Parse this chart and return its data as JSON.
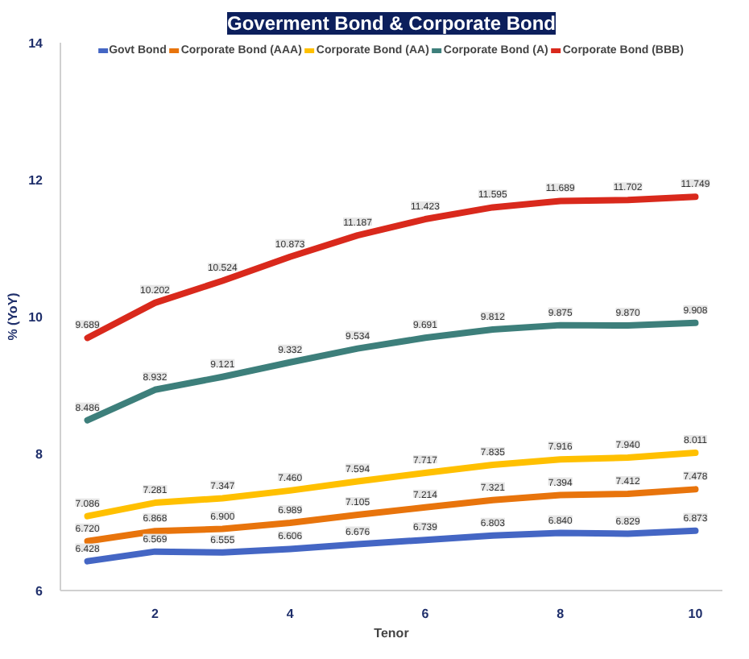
{
  "chart_data": {
    "type": "line",
    "title": "Goverment Bond & Corporate Bond",
    "xlabel": "Tenor",
    "ylabel": "% (YoY)",
    "x": [
      1,
      2,
      3,
      4,
      5,
      6,
      7,
      8,
      9,
      10
    ],
    "series": [
      {
        "name": "Govt Bond",
        "color": "#4466c4",
        "values": [
          6.428,
          6.569,
          6.555,
          6.606,
          6.676,
          6.739,
          6.803,
          6.84,
          6.829,
          6.873
        ],
        "value_labels": [
          "6.428",
          "6.569",
          "6.555",
          "6.606",
          "6.676",
          "6.739",
          "6.803",
          "6.840",
          "6.829",
          "6.873"
        ]
      },
      {
        "name": "Corporate Bond (AAA)",
        "color": "#e8740c",
        "values": [
          6.72,
          6.868,
          6.9,
          6.989,
          7.105,
          7.214,
          7.321,
          7.394,
          7.412,
          7.478
        ],
        "value_labels": [
          "6.720",
          "6.868",
          "6.900",
          "6.989",
          "7.105",
          "7.214",
          "7.321",
          "7.394",
          "7.412",
          "7.478"
        ]
      },
      {
        "name": "Corporate Bond (AA)",
        "color": "#ffc000",
        "values": [
          7.086,
          7.281,
          7.347,
          7.46,
          7.594,
          7.717,
          7.835,
          7.916,
          7.94,
          8.011
        ],
        "value_labels": [
          "7.086",
          "7.281",
          "7.347",
          "7.460",
          "7.594",
          "7.717",
          "7.835",
          "7.916",
          "7.940",
          "8.011"
        ]
      },
      {
        "name": "Corporate Bond (A)",
        "color": "#3d7f7b",
        "values": [
          8.486,
          8.932,
          9.121,
          9.332,
          9.534,
          9.691,
          9.812,
          9.875,
          9.87,
          9.908
        ],
        "value_labels": [
          "8.486",
          "8.932",
          "9.121",
          "9.332",
          "9.534",
          "9.691",
          "9.812",
          "9.875",
          "9.870",
          "9.908"
        ]
      },
      {
        "name": "Corporate Bond (BBB)",
        "color": "#d9291c",
        "values": [
          9.689,
          10.202,
          10.524,
          10.873,
          11.187,
          11.423,
          11.595,
          11.689,
          11.702,
          11.749
        ],
        "value_labels": [
          "9.689",
          "10.202",
          "10.524",
          "10.873",
          "11.187",
          "11.423",
          "11.595",
          "11.689",
          "11.702",
          "11.749"
        ]
      }
    ],
    "xlim": [
      0.6,
      10.4
    ],
    "ylim": [
      6,
      14
    ],
    "xticks": [
      2,
      4,
      6,
      8,
      10
    ],
    "yticks": [
      6,
      8,
      10,
      12,
      14
    ],
    "legend": "top"
  }
}
